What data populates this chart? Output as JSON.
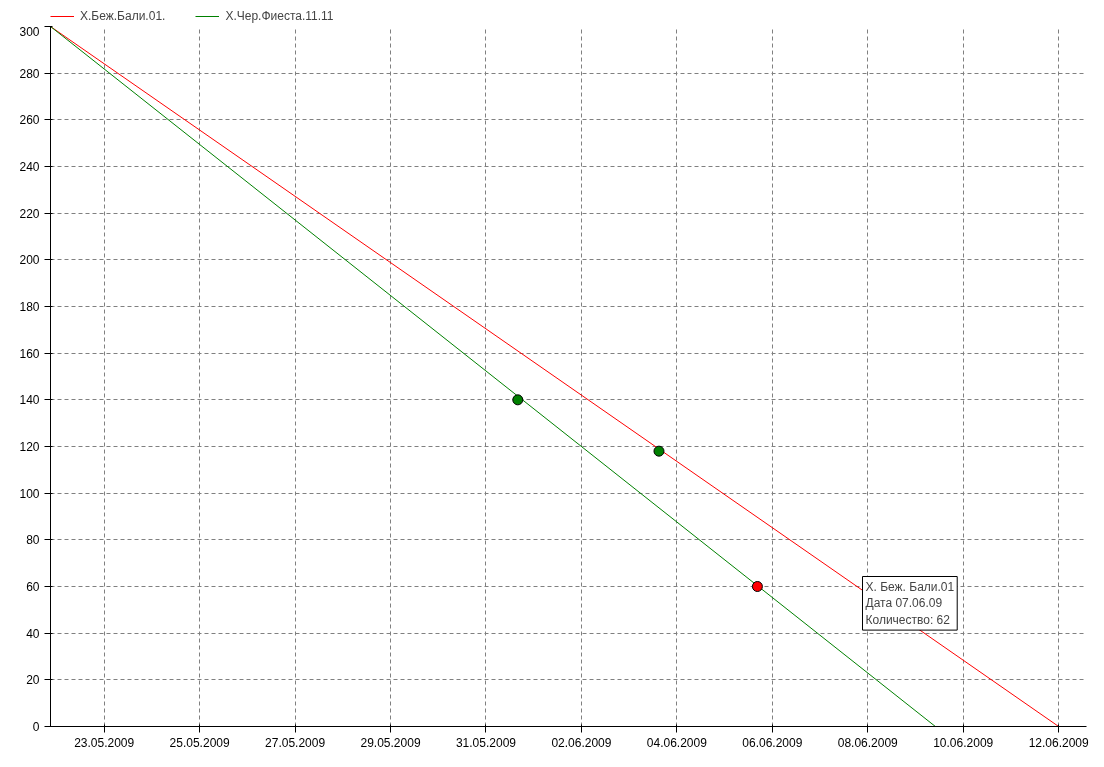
{
  "chart_data": {
    "type": "line",
    "legend": "top left",
    "grid": true,
    "annotations": [
      "X. Беж. Бали.01\nДата 07.06.09\nКоличество: 62"
    ],
    "xlim": [
      "2009-05-21T21:00",
      "2009-06-12T14:00"
    ],
    "xticks": [
      {
        "value": "2009-05-23",
        "label": "23.05.2009"
      },
      {
        "value": "2009-05-25",
        "label": "25.05.2009"
      },
      {
        "value": "2009-05-27",
        "label": "27.05.2009"
      },
      {
        "value": "2009-05-29",
        "label": "29.05.2009"
      },
      {
        "value": "2009-05-31",
        "label": "31.05.2009"
      },
      {
        "value": "2009-06-02",
        "label": "02.06.2009"
      },
      {
        "value": "2009-06-04",
        "label": "04.06.2009"
      },
      {
        "value": "2009-06-06",
        "label": "06.06.2009"
      },
      {
        "value": "2009-06-08",
        "label": "08.06.2009"
      },
      {
        "value": "2009-06-10",
        "label": "10.06.2009"
      },
      {
        "value": "2009-06-12",
        "label": "12.06.2009"
      }
    ],
    "ylim": [
      0,
      300
    ],
    "yticks": [
      0,
      20,
      40,
      60,
      80,
      100,
      120,
      140,
      160,
      180,
      200,
      220,
      240,
      260,
      280,
      300
    ],
    "series": [
      {
        "name": "X.Беж.Бали.01.",
        "color": "#ff0000",
        "x": [
          "2009-05-21T21:00",
          "2009-06-12T00:00"
        ],
        "values": [
          300,
          0
        ]
      },
      {
        "name": "X.Чер.Фиеста.11.11",
        "color": "#008000",
        "x": [
          "2009-05-21T21:00",
          "2009-06-09T10:00"
        ],
        "values": [
          300,
          0
        ]
      },
      {
        "color": "#008000",
        "type": "scatter",
        "marker": "circle",
        "x": [
          "2009-05-31T16:00",
          "2009-06-03T15:00"
        ],
        "values": [
          140,
          118
        ]
      },
      {
        "color": "#ff0000",
        "type": "scatter",
        "marker": "circle",
        "x": [
          "2009-06-05T16:30"
        ],
        "values": [
          60
        ]
      }
    ]
  }
}
